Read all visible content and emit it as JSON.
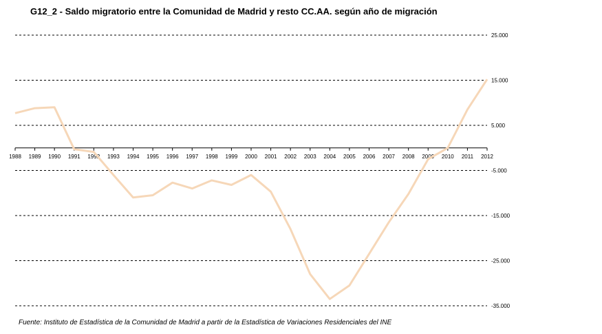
{
  "title": "G12_2 - Saldo migratorio entre la Comunidad de Madrid y resto CC.AA. según año de migración",
  "source": "Fuente: Instituto de Estadística de la Comunidad de Madrid a partir de la Estadística de Variaciones Residenciales del INE",
  "chart_data": {
    "type": "line",
    "title": "G12_2 - Saldo migratorio entre la Comunidad de Madrid y resto CC.AA. según año de migración",
    "categories": [
      "1988",
      "1989",
      "1990",
      "1991",
      "1992",
      "1993",
      "1994",
      "1995",
      "1996",
      "1997",
      "1998",
      "1999",
      "2000",
      "2001",
      "2002",
      "2003",
      "2004",
      "2005",
      "2006",
      "2007",
      "2008",
      "2009",
      "2010",
      "2011",
      "2012"
    ],
    "series": [
      {
        "values": [
          7700,
          8800,
          9000,
          -300,
          -900,
          -6000,
          -11000,
          -10500,
          -7700,
          -9000,
          -7200,
          -8200,
          -6000,
          -9700,
          -18000,
          -28000,
          -33500,
          -30500,
          -23500,
          -16500,
          -10200,
          -2500,
          0,
          8500,
          15200
        ]
      }
    ],
    "ylim": [
      -35000,
      25000
    ],
    "yticks": [
      25000,
      15000,
      5000,
      -5000,
      -15000,
      -25000,
      -35000
    ],
    "ytick_labels": [
      "25.000",
      "15.000",
      "5.000",
      "-5.000",
      "-15.000",
      "-25.000",
      "-35.000"
    ],
    "grid": true,
    "line_color": "#F6D7B8"
  }
}
